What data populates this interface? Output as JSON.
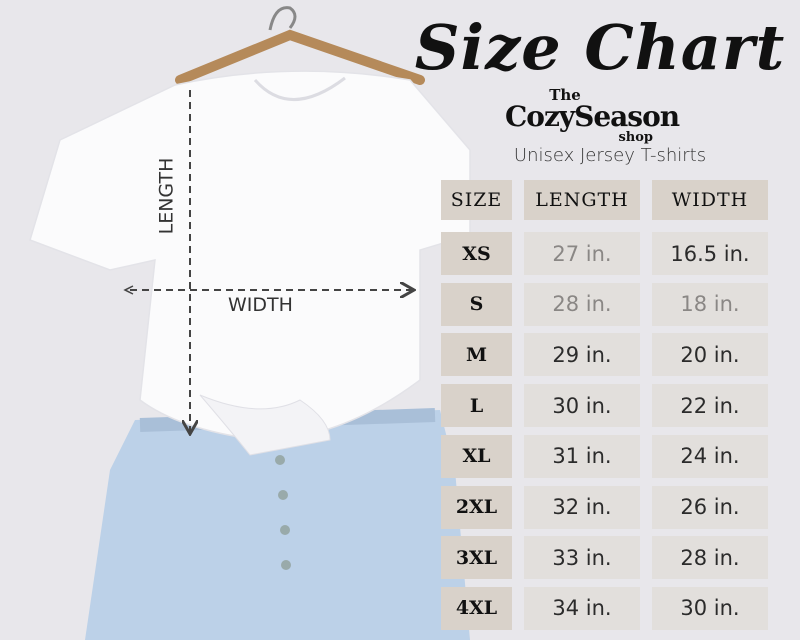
{
  "title": "Size Chart",
  "logo": {
    "line1": "The",
    "line2": "CozySeason",
    "line3": "shop"
  },
  "subtitle": "Unisex Jersey T-shirts",
  "measure_labels": {
    "length": "LENGTH",
    "width": "WIDTH"
  },
  "table": {
    "headers": [
      "SIZE",
      "LENGTH",
      "WIDTH"
    ],
    "rows": [
      {
        "size": "XS",
        "length": "27 in.",
        "width": "16.5 in."
      },
      {
        "size": "S",
        "length": "28 in.",
        "width": "18 in."
      },
      {
        "size": "M",
        "length": "29 in.",
        "width": "20 in."
      },
      {
        "size": "L",
        "length": "30 in.",
        "width": "22 in."
      },
      {
        "size": "XL",
        "length": "31 in.",
        "width": "24 in."
      },
      {
        "size": "2XL",
        "length": "32 in.",
        "width": "26 in."
      },
      {
        "size": "3XL",
        "length": "33 in.",
        "width": "28 in."
      },
      {
        "size": "4XL",
        "length": "34 in.",
        "width": "30 in."
      }
    ]
  },
  "colors": {
    "background": "#e8e7eb",
    "size_cell": "#d9d2ca",
    "value_cell": "#e2dfdc",
    "jeans": "#b9cfe6"
  }
}
